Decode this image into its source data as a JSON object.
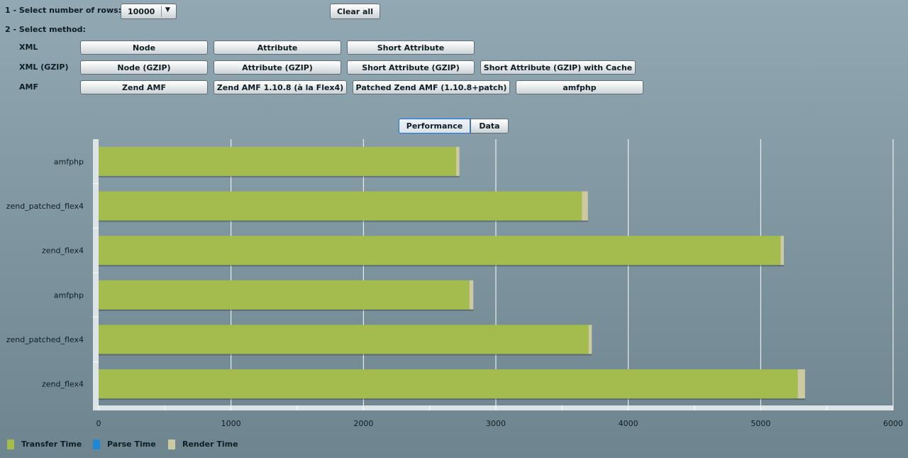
{
  "controls": {
    "rows_label": "1 - Select number of rows:",
    "rows_value": "10000",
    "clear_label": "Clear all",
    "method_label": "2 - Select method:",
    "groups": [
      {
        "label": "XML",
        "buttons": [
          "Node",
          "Attribute",
          "Short Attribute"
        ]
      },
      {
        "label": "XML (GZIP)",
        "buttons": [
          "Node (GZIP)",
          "Attribute (GZIP)",
          "Short Attribute (GZIP)",
          "Short Attribute (GZIP) with Cache"
        ]
      },
      {
        "label": "AMF",
        "buttons": [
          "Zend AMF",
          "Zend AMF 1.10.8 (à la Flex4)",
          "Patched Zend AMF (1.10.8+patch)",
          "amfphp"
        ]
      }
    ]
  },
  "tabs": [
    {
      "label": "Performance",
      "selected": true
    },
    {
      "label": "Data",
      "selected": false
    }
  ],
  "chart_data": {
    "type": "bar",
    "orientation": "horizontal",
    "stacked": true,
    "categories": [
      "amfphp",
      "zend_patched_flex4",
      "zend_flex4",
      "amfphp",
      "zend_patched_flex4",
      "zend_flex4"
    ],
    "series": [
      {
        "name": "Transfer Time",
        "color": "#a4bb4e",
        "values": [
          2700,
          3650,
          5150,
          2800,
          3700,
          5280
        ]
      },
      {
        "name": "Parse Time",
        "color": "#1e87d6",
        "values": [
          0,
          0,
          0,
          0,
          0,
          0
        ]
      },
      {
        "name": "Render Time",
        "color": "#cdc9a0",
        "values": [
          25,
          45,
          25,
          30,
          25,
          55
        ]
      }
    ],
    "xlim": [
      0,
      6000
    ],
    "xticks": [
      "0",
      "1000",
      "2000",
      "3000",
      "4000",
      "5000",
      "6000"
    ],
    "grid": true,
    "legend": "bottom-left"
  }
}
